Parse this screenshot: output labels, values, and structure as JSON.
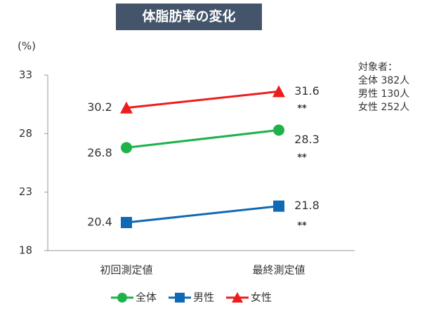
{
  "chart_data": {
    "type": "line",
    "title": "体脂肪率の変化",
    "y_label": "(%)",
    "categories": [
      "初回測定値",
      "最終測定値"
    ],
    "ylim": [
      18,
      33
    ],
    "yticks": [
      18,
      23,
      28,
      33
    ],
    "series": [
      {
        "name": "全体",
        "color": "#1fb24a",
        "marker": "circle",
        "values": [
          26.8,
          28.3
        ]
      },
      {
        "name": "男性",
        "color": "#1069b5",
        "marker": "square",
        "values": [
          20.4,
          21.8
        ]
      },
      {
        "name": "女性",
        "color": "#ee1c1c",
        "marker": "triangle",
        "values": [
          30.2,
          31.6
        ]
      }
    ],
    "annotations": [
      "**",
      "**",
      "**"
    ],
    "note": [
      "対象者：",
      "全体  382人",
      "男性  130人",
      "女性  252人"
    ]
  }
}
